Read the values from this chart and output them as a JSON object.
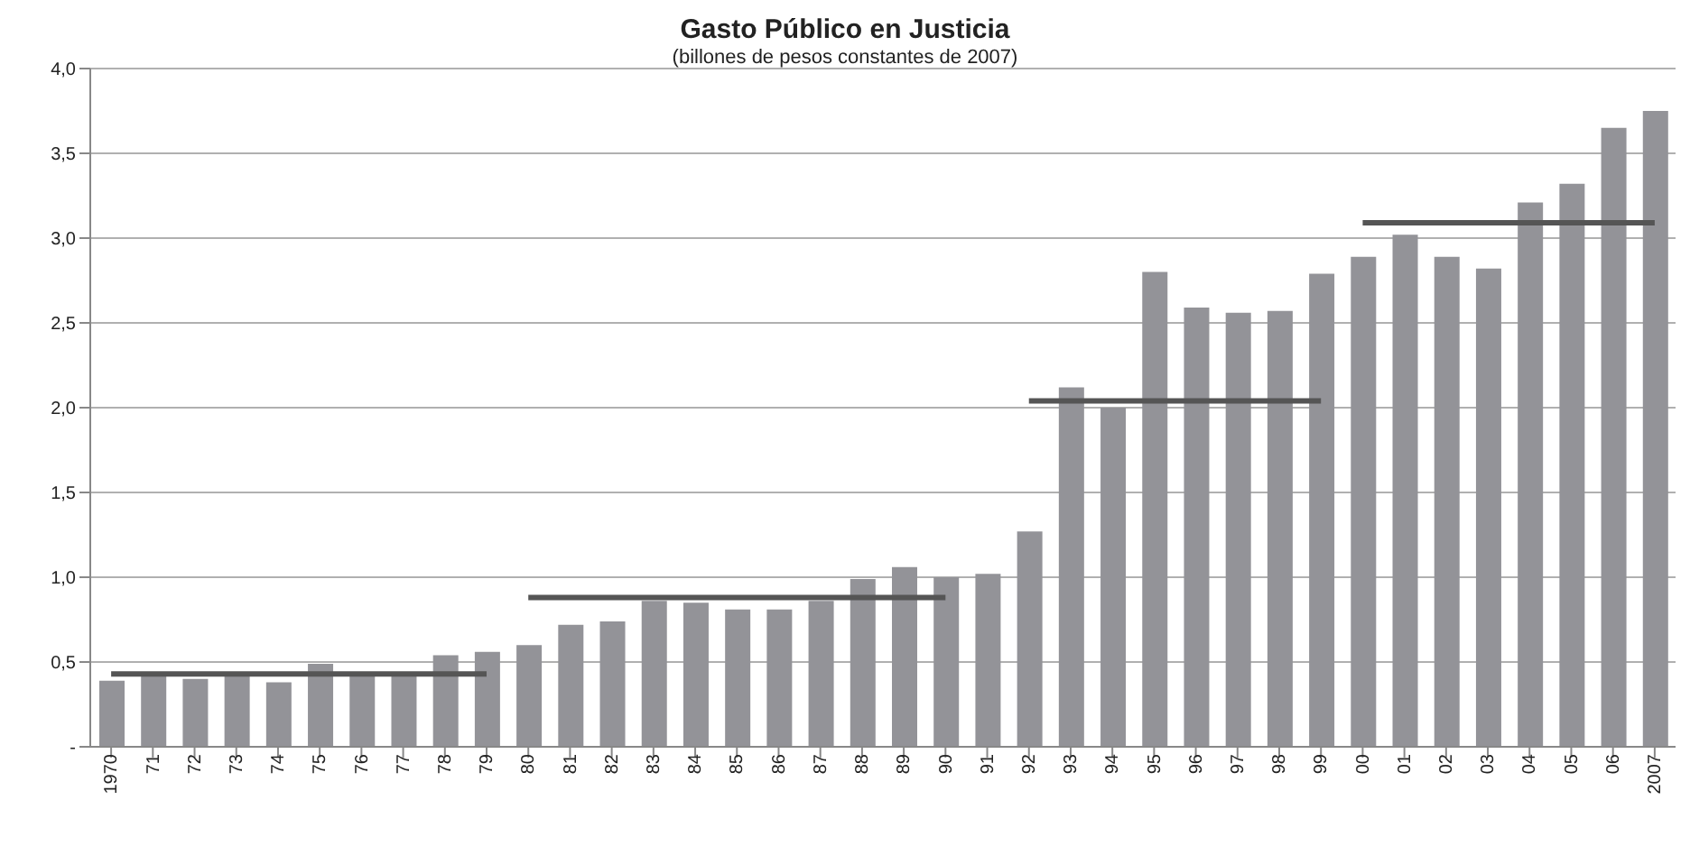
{
  "chart_data": {
    "type": "bar",
    "title": "Gasto Público en Justicia",
    "subtitle": "(billones de pesos constantes de 2007)",
    "categories": [
      "1970",
      "71",
      "72",
      "73",
      "74",
      "75",
      "76",
      "77",
      "78",
      "79",
      "80",
      "81",
      "82",
      "83",
      "84",
      "85",
      "86",
      "87",
      "88",
      "89",
      "90",
      "91",
      "92",
      "93",
      "94",
      "95",
      "96",
      "97",
      "98",
      "99",
      "00",
      "01",
      "02",
      "03",
      "04",
      "05",
      "06",
      "2007"
    ],
    "series": [
      {
        "color": "#939398",
        "values": [
          0.39,
          0.43,
          0.4,
          0.43,
          0.38,
          0.49,
          0.43,
          0.43,
          0.54,
          0.56,
          0.6,
          0.72,
          0.74,
          0.86,
          0.85,
          0.81,
          0.81,
          0.86,
          0.99,
          1.06,
          1.0,
          1.02,
          1.27,
          2.12,
          2.0,
          2.8,
          2.59,
          2.56,
          2.57,
          2.79,
          2.89,
          3.02,
          2.89,
          2.82,
          3.21,
          3.32,
          3.65,
          3.75
        ]
      },
      {
        "type": "line",
        "color": "#555555",
        "values": [
          0.43,
          0.43,
          0.43,
          0.43,
          0.43,
          0.43,
          0.43,
          0.43,
          0.43,
          0.43,
          null,
          null,
          null,
          null,
          null,
          null,
          null,
          null,
          null,
          null,
          null,
          null,
          null,
          null,
          null,
          null,
          null,
          null,
          null,
          null,
          null,
          null,
          null,
          null,
          null,
          null,
          null,
          null
        ]
      },
      {
        "type": "line",
        "color": "#555555",
        "values": [
          null,
          null,
          null,
          null,
          null,
          null,
          null,
          null,
          null,
          null,
          0.88,
          0.88,
          0.88,
          0.88,
          0.88,
          0.88,
          0.88,
          0.88,
          0.88,
          0.88,
          0.88,
          null,
          null,
          null,
          null,
          null,
          null,
          null,
          null,
          null,
          null,
          null,
          null,
          null,
          null,
          null,
          null,
          null
        ]
      },
      {
        "type": "line",
        "color": "#555555",
        "values": [
          null,
          null,
          null,
          null,
          null,
          null,
          null,
          null,
          null,
          null,
          null,
          null,
          null,
          null,
          null,
          null,
          null,
          null,
          null,
          null,
          null,
          null,
          2.04,
          2.04,
          2.04,
          2.04,
          2.04,
          2.04,
          2.04,
          2.04,
          null,
          null,
          null,
          null,
          null,
          null,
          null,
          null
        ]
      },
      {
        "type": "line",
        "color": "#555555",
        "values": [
          null,
          null,
          null,
          null,
          null,
          null,
          null,
          null,
          null,
          null,
          null,
          null,
          null,
          null,
          null,
          null,
          null,
          null,
          null,
          null,
          null,
          null,
          null,
          null,
          null,
          null,
          null,
          null,
          null,
          null,
          3.09,
          3.09,
          3.09,
          3.09,
          3.09,
          3.09,
          3.09,
          3.09
        ]
      }
    ],
    "ylim": [
      0,
      4
    ],
    "yticks": [
      {
        "value": 0,
        "label": "-"
      },
      {
        "value": 0.5,
        "label": "0,5"
      },
      {
        "value": 1,
        "label": "1,0"
      },
      {
        "value": 1.5,
        "label": "1,5"
      },
      {
        "value": 2,
        "label": "2,0"
      },
      {
        "value": 2.5,
        "label": "2,5"
      },
      {
        "value": 3,
        "label": "3,0"
      },
      {
        "value": 3.5,
        "label": "3,5"
      },
      {
        "value": 4,
        "label": "4,0"
      }
    ],
    "grid": "y",
    "legend": false,
    "marker": "none",
    "line_style": "solid"
  }
}
